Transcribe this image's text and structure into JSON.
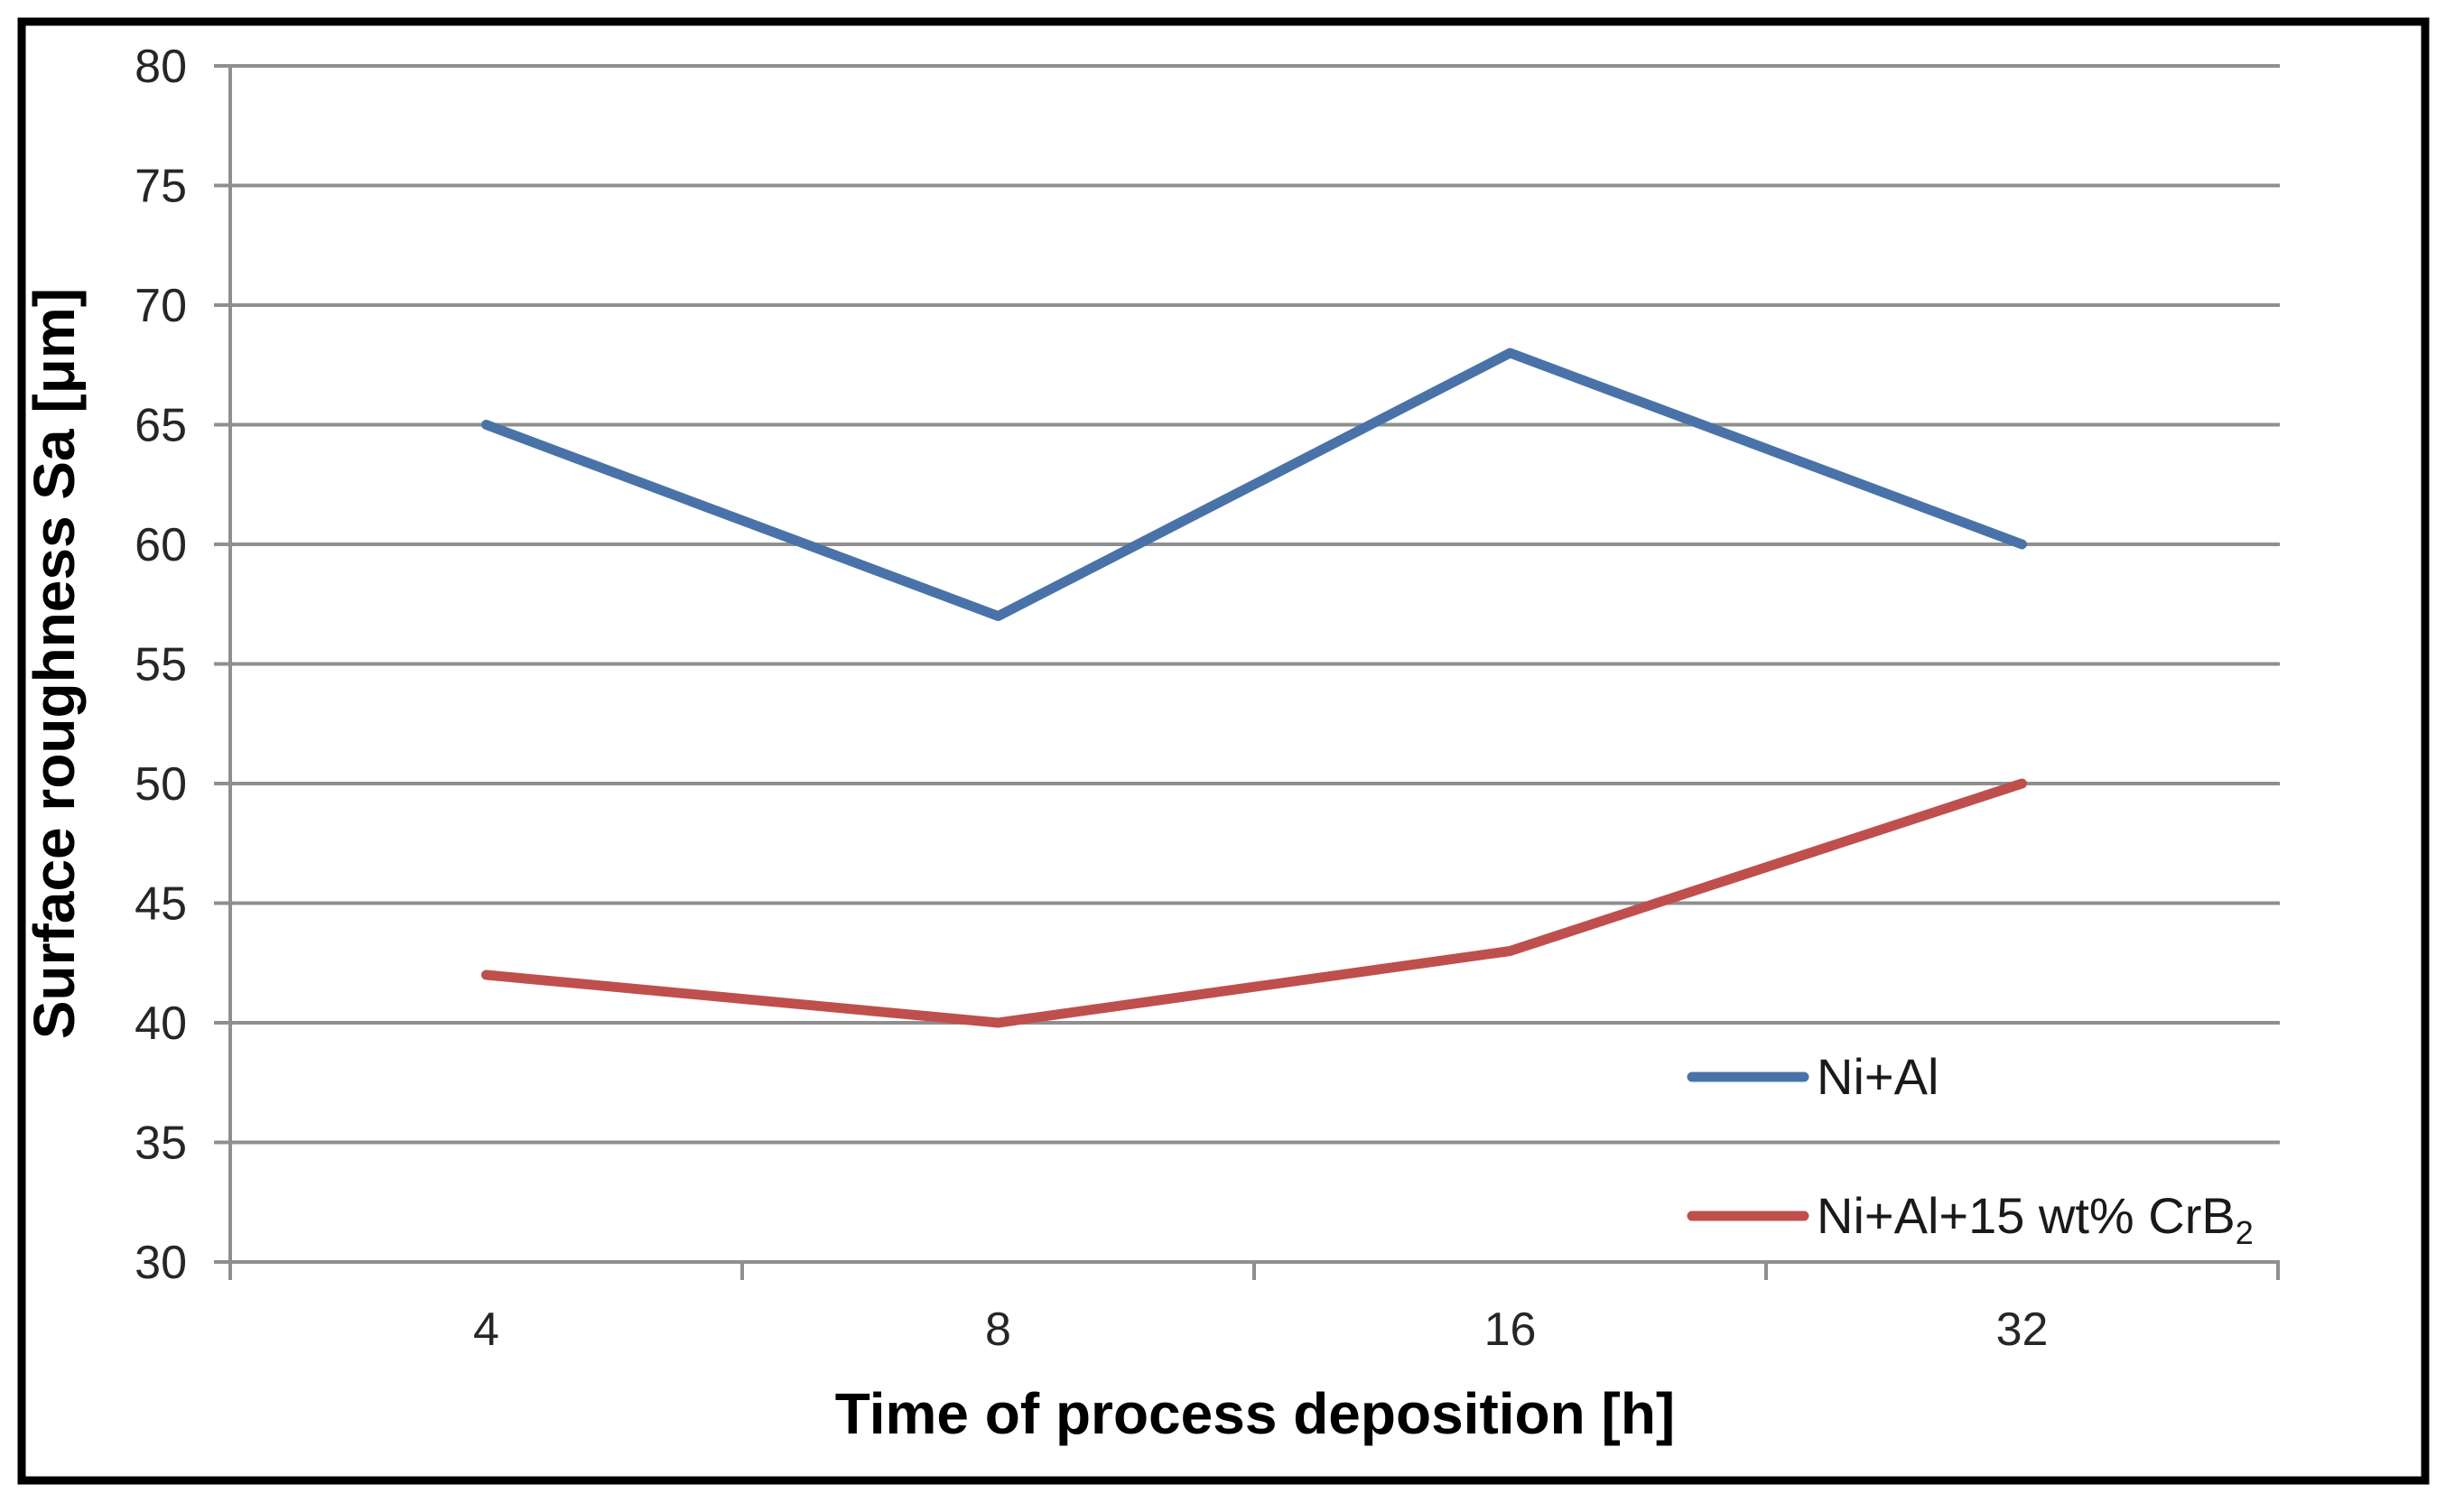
{
  "chart_data": {
    "type": "line",
    "title": "",
    "xlabel": "Time of process deposition [h]",
    "ylabel": "Surface roughness Sa [μm]",
    "categories": [
      "4",
      "8",
      "16",
      "32"
    ],
    "series": [
      {
        "name": "Ni+Al",
        "name_main": "Ni+Al",
        "name_subscript": "",
        "values": [
          65,
          57,
          68,
          60
        ],
        "color": "#4973a8"
      },
      {
        "name": "Ni+Al+15 wt% CrB2",
        "name_main": "Ni+Al+15 wt% CrB",
        "name_subscript": "2",
        "values": [
          42,
          40,
          43,
          50
        ],
        "color": "#bf4f4d"
      }
    ],
    "ylim": [
      30,
      80
    ],
    "yticks": [
      30,
      35,
      40,
      45,
      50,
      55,
      60,
      65,
      70,
      75,
      80
    ],
    "xticks_between_categories": true,
    "grid": "horizontal-major",
    "legend_position": "inside-right"
  },
  "colors": {
    "background": "#ffffff",
    "frame_border": "#000000",
    "gridline": "#8f8f8f",
    "axis_line": "#8f8f8f",
    "tick_label": "#262626",
    "axis_title": "#000000",
    "series_ni_al": "#4973a8",
    "series_ni_al_crb2": "#bf4f4d"
  }
}
